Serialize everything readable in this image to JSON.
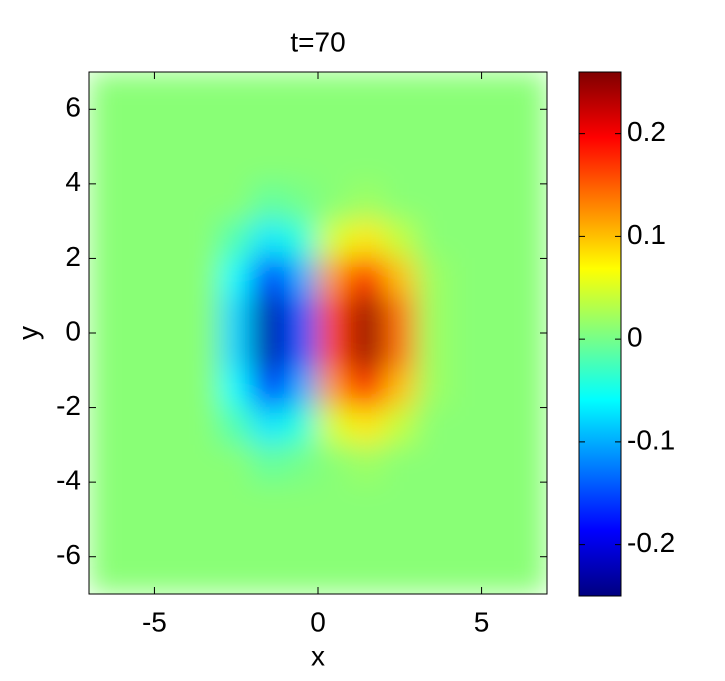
{
  "chart_data": {
    "type": "heatmap",
    "title": "t=70",
    "x_label": "x",
    "y_label": "y",
    "colormap": "jet",
    "xlim": [
      -7,
      7
    ],
    "ylim": [
      -7,
      7
    ],
    "xticks": [
      -5,
      0,
      5
    ],
    "yticks": [
      -6,
      -4,
      -2,
      0,
      2,
      4,
      6
    ],
    "clim": [
      -0.25,
      0.26
    ],
    "cticks": [
      -0.2,
      -0.1,
      0,
      0.1,
      0.2
    ],
    "x": [
      -6.5,
      -5.5,
      -4.5,
      -3.5,
      -2.5,
      -1.5,
      -0.5,
      0.5,
      1.5,
      2.5,
      3.5,
      4.5,
      5.5,
      6.5
    ],
    "y": [
      6.5,
      5.5,
      4.5,
      3.5,
      2.5,
      1.5,
      0.5,
      -0.5,
      -1.5,
      -2.5,
      -3.5,
      -4.5,
      -5.5,
      -6.5
    ],
    "z": [
      [
        0.01,
        0.01,
        0.01,
        0.01,
        0.01,
        0.01,
        0.01,
        0.01,
        0.01,
        0.01,
        0.01,
        0.01,
        0.01,
        0.01
      ],
      [
        0.01,
        0.01,
        0.01,
        0.01,
        0.01,
        0.01,
        0.01,
        0.01,
        0.01,
        0.01,
        0.01,
        0.01,
        0.01,
        0.01
      ],
      [
        0.01,
        0.01,
        0.01,
        0.01,
        0.01,
        0.01,
        0.01,
        0.01,
        0.01,
        0.01,
        0.01,
        0.01,
        0.01,
        0.01
      ],
      [
        0.01,
        0.01,
        0.01,
        0.01,
        0.01,
        -0.01,
        0,
        0.01,
        0.02,
        0.01,
        0.01,
        0.01,
        0.01,
        0.01
      ],
      [
        0.01,
        0.01,
        0.01,
        0.01,
        -0.02,
        -0.07,
        -0.04,
        0.05,
        0.08,
        0.04,
        0.01,
        0.01,
        0.01,
        0.01
      ],
      [
        0.01,
        0.01,
        0.01,
        0.01,
        -0.06,
        -0.17,
        -0.1,
        0.12,
        0.19,
        0.1,
        0.02,
        0.01,
        0.01,
        0.01
      ],
      [
        0.01,
        0.01,
        0.01,
        0.01,
        -0.08,
        -0.23,
        -0.14,
        0.16,
        0.25,
        0.14,
        0.02,
        0.01,
        0.01,
        0.01
      ],
      [
        0.01,
        0.01,
        0.01,
        0.01,
        -0.08,
        -0.23,
        -0.14,
        0.16,
        0.25,
        0.14,
        0.02,
        0.01,
        0.01,
        0.01
      ],
      [
        0.01,
        0.01,
        0.01,
        0.01,
        -0.06,
        -0.17,
        -0.1,
        0.12,
        0.19,
        0.1,
        0.02,
        0.01,
        0.01,
        0.01
      ],
      [
        0.01,
        0.01,
        0.01,
        0.01,
        -0.02,
        -0.07,
        -0.04,
        0.05,
        0.08,
        0.04,
        0.01,
        0.01,
        0.01,
        0.01
      ],
      [
        0.01,
        0.01,
        0.01,
        0.01,
        0.01,
        -0.01,
        0,
        0.01,
        0.02,
        0.01,
        0.01,
        0.01,
        0.01,
        0.01
      ],
      [
        0.01,
        0.01,
        0.01,
        0.01,
        0.01,
        0.01,
        0.01,
        0.01,
        0.01,
        0.01,
        0.01,
        0.01,
        0.01,
        0.01
      ],
      [
        0.01,
        0.01,
        0.01,
        0.01,
        0.01,
        0.01,
        0.01,
        0.01,
        0.01,
        0.01,
        0.01,
        0.01,
        0.01,
        0.01
      ],
      [
        0.01,
        0.01,
        0.01,
        0.01,
        0.01,
        0.01,
        0.01,
        0.01,
        0.01,
        0.01,
        0.01,
        0.01,
        0.01,
        0.01
      ]
    ]
  }
}
